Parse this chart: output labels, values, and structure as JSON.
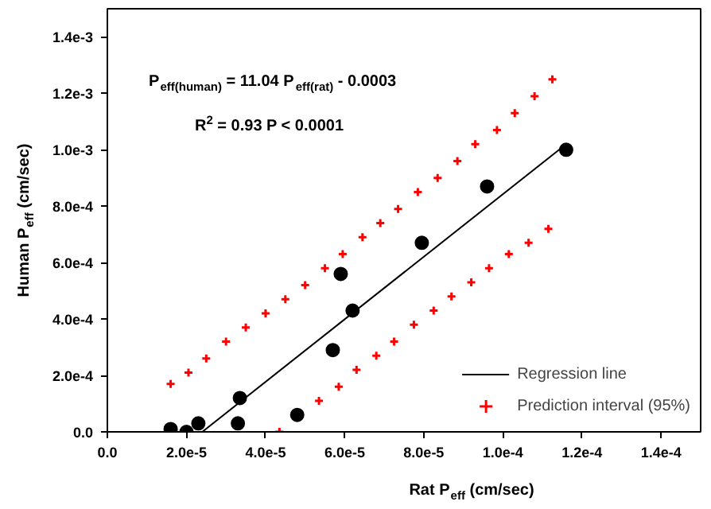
{
  "chart_data": {
    "type": "scatter",
    "xlabel": "Rat P$_{eff}$ (cm/sec)",
    "ylabel": "Human P$_{eff}$ (cm/sec)",
    "annotations": [
      "P$_{eff(human)}$ = 11.04 P$_{eff(rat)}$ - 0.0003",
      "R$^{2}$ = 0.93  P < 0.0001"
    ],
    "xlim": [
      0,
      0.00015
    ],
    "ylim": [
      0,
      0.0015
    ],
    "xticks": [
      {
        "value": 0,
        "label": "0.0"
      },
      {
        "value": 2e-05,
        "label": "2.0e-5"
      },
      {
        "value": 4e-05,
        "label": "4.0e-5"
      },
      {
        "value": 6e-05,
        "label": "6.0e-5"
      },
      {
        "value": 8e-05,
        "label": "8.0e-5"
      },
      {
        "value": 0.0001,
        "label": "1.0e-4"
      },
      {
        "value": 0.00012,
        "label": "1.2e-4"
      },
      {
        "value": 0.00014,
        "label": "1.4e-4"
      }
    ],
    "yticks": [
      {
        "value": 0,
        "label": "0.0"
      },
      {
        "value": 0.0002,
        "label": "2.0e-4"
      },
      {
        "value": 0.0004,
        "label": "4.0e-4"
      },
      {
        "value": 0.0006,
        "label": "6.0e-4"
      },
      {
        "value": 0.0008,
        "label": "8.0e-4"
      },
      {
        "value": 0.001,
        "label": "1.0e-3"
      },
      {
        "value": 0.0012,
        "label": "1.2e-3"
      },
      {
        "value": 0.0014,
        "label": "1.4e-3"
      }
    ],
    "grid": false,
    "legend": "bottom right",
    "series": [
      {
        "marker": "circle",
        "color": "#000000",
        "x": [
          1.6e-05,
          2e-05,
          2.3e-05,
          3.35e-05,
          3.3e-05,
          4.8e-05,
          5.7e-05,
          5.9e-05,
          6.2e-05,
          7.95e-05,
          9.6e-05,
          0.000116
        ],
        "values": [
          1e-05,
          0,
          3e-05,
          0.00012,
          3e-05,
          6e-05,
          0.00029,
          0.00056,
          0.00043,
          0.00067,
          0.00087,
          0.001
        ]
      },
      {
        "type": "line",
        "name": "Regression line",
        "color": "#000000",
        "line_style": "solid",
        "x": [
          2.4e-05,
          0.000116
        ],
        "values": [
          0,
          0.00102
        ]
      },
      {
        "marker": "cross",
        "name": "Prediction interval (95%)",
        "color": "#ff0000",
        "x": [
          1.6e-05,
          2.05e-05,
          2.5e-05,
          3e-05,
          3.5e-05,
          4e-05,
          4.5e-05,
          5e-05,
          5.5e-05,
          5.95e-05,
          6.45e-05,
          6.9e-05,
          7.35e-05,
          7.85e-05,
          8.35e-05,
          8.85e-05,
          9.3e-05,
          9.85e-05,
          0.000103,
          0.000108,
          0.0001125
        ],
        "values": [
          0.00017,
          0.00021,
          0.00026,
          0.00032,
          0.00037,
          0.00042,
          0.00047,
          0.00052,
          0.00058,
          0.00063,
          0.00069,
          0.00074,
          0.00079,
          0.00085,
          0.0009,
          0.00096,
          0.00102,
          0.00107,
          0.00113,
          0.00119,
          0.00125
        ]
      },
      {
        "marker": "cross",
        "color": "#ff0000",
        "x": [
          4.35e-05,
          5.35e-05,
          5.85e-05,
          6.3e-05,
          6.8e-05,
          7.25e-05,
          7.75e-05,
          8.25e-05,
          8.7e-05,
          9.2e-05,
          9.65e-05,
          0.0001015,
          0.0001065,
          0.0001115
        ],
        "values": [
          0,
          0.00011,
          0.00016,
          0.00022,
          0.00027,
          0.00032,
          0.00038,
          0.00043,
          0.00048,
          0.00053,
          0.00058,
          0.00063,
          0.00067,
          0.00072
        ]
      }
    ]
  }
}
